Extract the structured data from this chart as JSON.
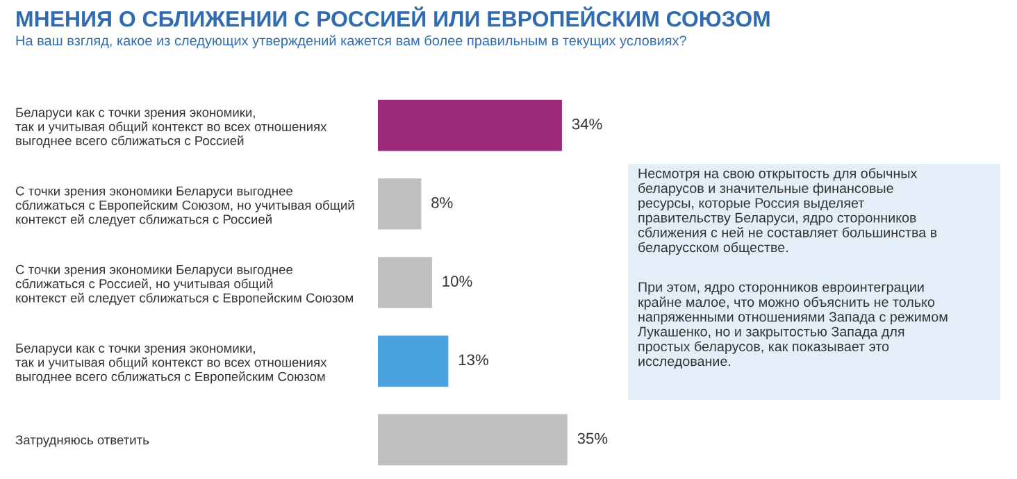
{
  "chart_data": {
    "type": "bar",
    "orientation": "horizontal",
    "title": "МНЕНИЯ О СБЛИЖЕНИИ С РОССИЕЙ ИЛИ ЕВРОПЕЙСКИМ СОЮЗОМ",
    "subtitle": "На ваш взгляд, какое из следующих утверждений кажется вам более правильным в текущих условиях?",
    "categories": [
      "Беларуси как с точки зрения экономики,\nтак и учитывая общий контекст во всех отношениях\nвыгоднее всего сближаться с Россией",
      "С точки зрения экономики Беларуси выгоднее\nсближаться с Европейским Союзом, но учитывая общий\nконтекст ей следует сближаться с Россией",
      "С точки зрения экономики Беларуси выгоднее\nсближаться с Россией, но учитывая общий\nконтекст ей следует сближаться с Европейским Союзом",
      "Беларуси как с точки зрения экономики,\nтак и учитывая общий контекст во всех отношениях\nвыгоднее всего сближаться с Европейским Союзом",
      "Затрудняюсь ответить"
    ],
    "values": [
      34,
      8,
      10,
      13,
      35
    ],
    "colors": [
      "#9b2a7b",
      "#bfbfbf",
      "#bfbfbf",
      "#4aa3df",
      "#bfbfbf"
    ],
    "value_labels": [
      "34%",
      "8%",
      "10%",
      "13%",
      "35%"
    ],
    "annotations": [
      "Несмотря на свою открытость для обычных\nбеларусов и значительные финансовые\nресурсы, которые Россия выделяет\nправительству Беларуси, ядро сторонников\nсближения с ней не составляет большинства в\nбеларусском обществе.",
      "При этом, ядро сторонников евроинтеграции\nкрайне малое, что можно объяснить не только\nнапряженными отношениями Запада с режимом\nЛукашенко, но и закрытостью Запада для\nпростых беларусов, как показывает это\nисследование."
    ],
    "grid": false,
    "legend": false
  }
}
